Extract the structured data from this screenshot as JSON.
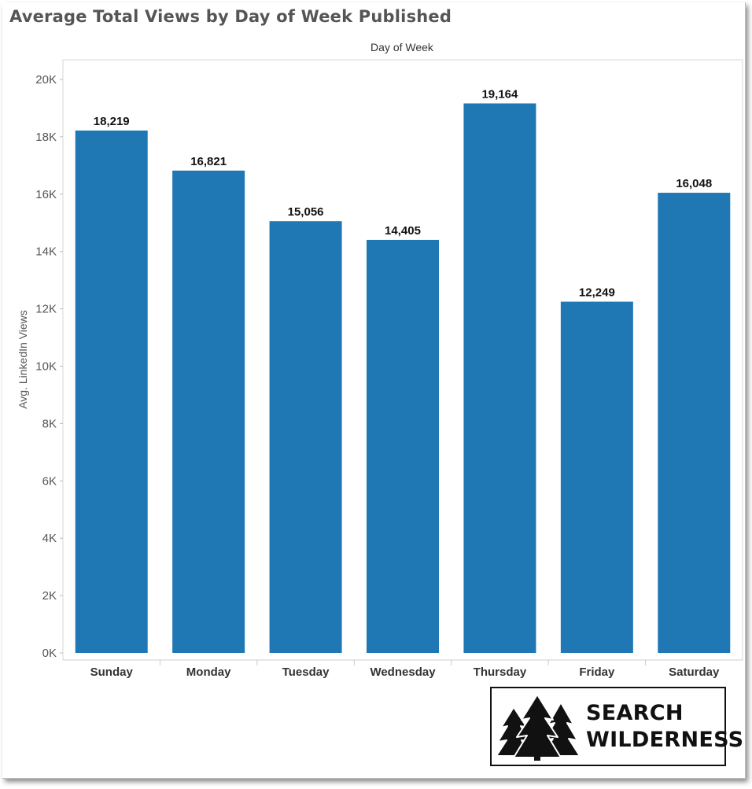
{
  "chart_data": {
    "type": "bar",
    "title": "Average Total Views by Day of Week Published",
    "column_header": "Day of Week",
    "ylabel": "Avg. LinkedIn Views",
    "xlabel": "",
    "categories": [
      "Sunday",
      "Monday",
      "Tuesday",
      "Wednesday",
      "Thursday",
      "Friday",
      "Saturday"
    ],
    "values": [
      18219,
      16821,
      15056,
      14405,
      19164,
      12249,
      16048
    ],
    "value_labels": [
      "18,219",
      "16,821",
      "15,056",
      "14,405",
      "19,164",
      "12,249",
      "16,048"
    ],
    "ylim": [
      0,
      20000
    ],
    "yticks": [
      0,
      2000,
      4000,
      6000,
      8000,
      10000,
      12000,
      14000,
      16000,
      18000,
      20000
    ],
    "ytick_labels": [
      "0K",
      "2K",
      "4K",
      "6K",
      "8K",
      "10K",
      "12K",
      "14K",
      "16K",
      "18K",
      "20K"
    ],
    "bar_color": "#1f77b4",
    "grid": false
  },
  "logo": {
    "line1": "SEARCH",
    "line2": "WILDERNESS",
    "icon": "pine-trees-icon"
  }
}
